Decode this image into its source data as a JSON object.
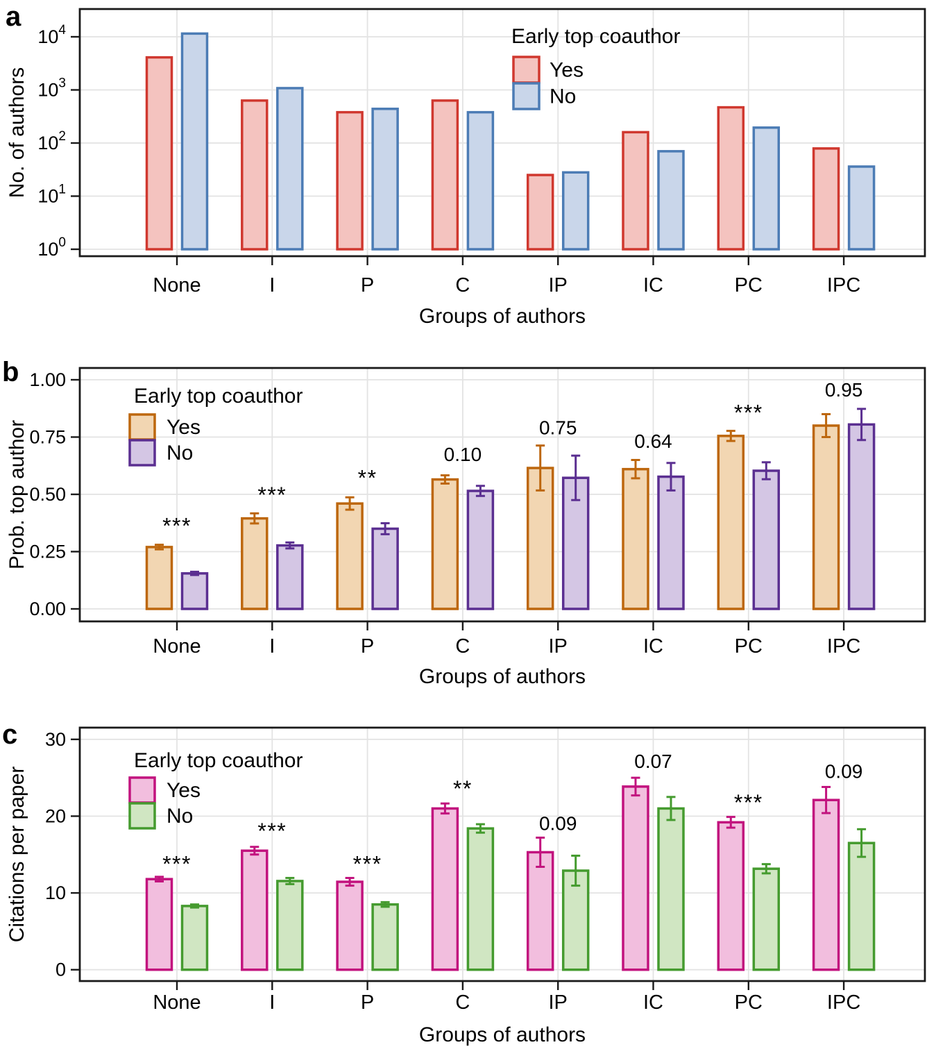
{
  "figure": {
    "panel_letters": [
      "a",
      "b",
      "c"
    ],
    "xlabel": "Groups of authors",
    "categories": [
      "None",
      "I",
      "P",
      "C",
      "IP",
      "IC",
      "PC",
      "IPC"
    ],
    "legend_title": "Early top coauthor",
    "legend_entries": [
      "Yes",
      "No"
    ]
  },
  "chart_data": [
    {
      "type": "bar",
      "panel": "a",
      "ylabel": "No. of authors",
      "xlabel": "Groups of authors",
      "yscale": "log",
      "ytick_exponents": [
        0,
        1,
        2,
        3,
        4
      ],
      "ylim": [
        1,
        30000
      ],
      "grid": true,
      "categories": [
        "None",
        "I",
        "P",
        "C",
        "IP",
        "IC",
        "PC",
        "IPC"
      ],
      "legend": {
        "title": "Early top coauthor",
        "position": "top-right",
        "entries": [
          "Yes",
          "No"
        ]
      },
      "series": [
        {
          "name": "Yes",
          "stroke": "#d0382f",
          "fill": "#f4c3bf",
          "values": [
            4100,
            630,
            380,
            630,
            25,
            160,
            470,
            79
          ]
        },
        {
          "name": "No",
          "stroke": "#4c7cb5",
          "fill": "#c9d6ea",
          "values": [
            11500,
            1080,
            440,
            380,
            28,
            70,
            195,
            36
          ]
        }
      ],
      "annotations": []
    },
    {
      "type": "bar",
      "panel": "b",
      "ylabel": "Prob. top author",
      "xlabel": "Groups of authors",
      "yscale": "linear",
      "yticks": [
        0,
        0.25,
        0.5,
        0.75,
        1.0
      ],
      "ytick_decimals": 2,
      "ylim": [
        0,
        1.05
      ],
      "grid": true,
      "categories": [
        "None",
        "I",
        "P",
        "C",
        "IP",
        "IC",
        "PC",
        "IPC"
      ],
      "legend": {
        "title": "Early top coauthor",
        "position": "top-left",
        "entries": [
          "Yes",
          "No"
        ]
      },
      "series": [
        {
          "name": "Yes",
          "stroke": "#bd670e",
          "fill": "#f2d6b2",
          "values": [
            0.27,
            0.395,
            0.46,
            0.565,
            0.615,
            0.61,
            0.755,
            0.8
          ],
          "errors": [
            0.01,
            0.022,
            0.027,
            0.018,
            0.098,
            0.04,
            0.022,
            0.05
          ]
        },
        {
          "name": "No",
          "stroke": "#5b2f91",
          "fill": "#d4c6e4",
          "values": [
            0.155,
            0.277,
            0.35,
            0.515,
            0.572,
            0.577,
            0.603,
            0.805
          ],
          "errors": [
            0.007,
            0.013,
            0.024,
            0.022,
            0.097,
            0.06,
            0.037,
            0.068
          ]
        }
      ],
      "annotations": [
        {
          "category": "None",
          "label": "***",
          "y": 0.38
        },
        {
          "category": "I",
          "label": "***",
          "y": 0.515
        },
        {
          "category": "P",
          "label": "**",
          "y": 0.59
        },
        {
          "category": "C",
          "label": "0.10",
          "y": 0.672
        },
        {
          "category": "IP",
          "label": "0.75",
          "y": 0.79
        },
        {
          "category": "IC",
          "label": "0.64",
          "y": 0.73
        },
        {
          "category": "PC",
          "label": "***",
          "y": 0.874
        },
        {
          "category": "IPC",
          "label": "0.95",
          "y": 0.954
        }
      ]
    },
    {
      "type": "bar",
      "panel": "c",
      "ylabel": "Citations per paper",
      "xlabel": "Groups of authors",
      "yscale": "linear",
      "yticks": [
        0,
        10,
        20,
        30
      ],
      "ytick_decimals": 0,
      "ylim": [
        0,
        31.5
      ],
      "grid": true,
      "categories": [
        "None",
        "I",
        "P",
        "C",
        "IP",
        "IC",
        "PC",
        "IPC"
      ],
      "legend": {
        "title": "Early top coauthor",
        "position": "top-left",
        "entries": [
          "Yes",
          "No"
        ]
      },
      "series": [
        {
          "name": "Yes",
          "stroke": "#c2137e",
          "fill": "#f2bede",
          "values": [
            11.8,
            15.5,
            11.45,
            21.0,
            15.3,
            23.85,
            19.2,
            22.1
          ],
          "errors": [
            0.3,
            0.5,
            0.5,
            0.65,
            1.9,
            1.15,
            0.7,
            1.7
          ]
        },
        {
          "name": "No",
          "stroke": "#459b2f",
          "fill": "#d0e6c2",
          "values": [
            8.3,
            11.55,
            8.5,
            18.4,
            12.9,
            21.0,
            13.15,
            16.5
          ],
          "errors": [
            0.2,
            0.4,
            0.3,
            0.55,
            1.95,
            1.5,
            0.6,
            1.8
          ]
        }
      ],
      "annotations": [
        {
          "category": "None",
          "label": "***",
          "y": 14.3
        },
        {
          "category": "I",
          "label": "***",
          "y": 18.6
        },
        {
          "category": "P",
          "label": "***",
          "y": 14.3
        },
        {
          "category": "C",
          "label": "**",
          "y": 24.1
        },
        {
          "category": "IP",
          "label": "0.09",
          "y": 19.0
        },
        {
          "category": "IC",
          "label": "0.07",
          "y": 27.1
        },
        {
          "category": "PC",
          "label": "***",
          "y": 22.3
        },
        {
          "category": "IPC",
          "label": "0.09",
          "y": 25.8
        }
      ]
    }
  ]
}
